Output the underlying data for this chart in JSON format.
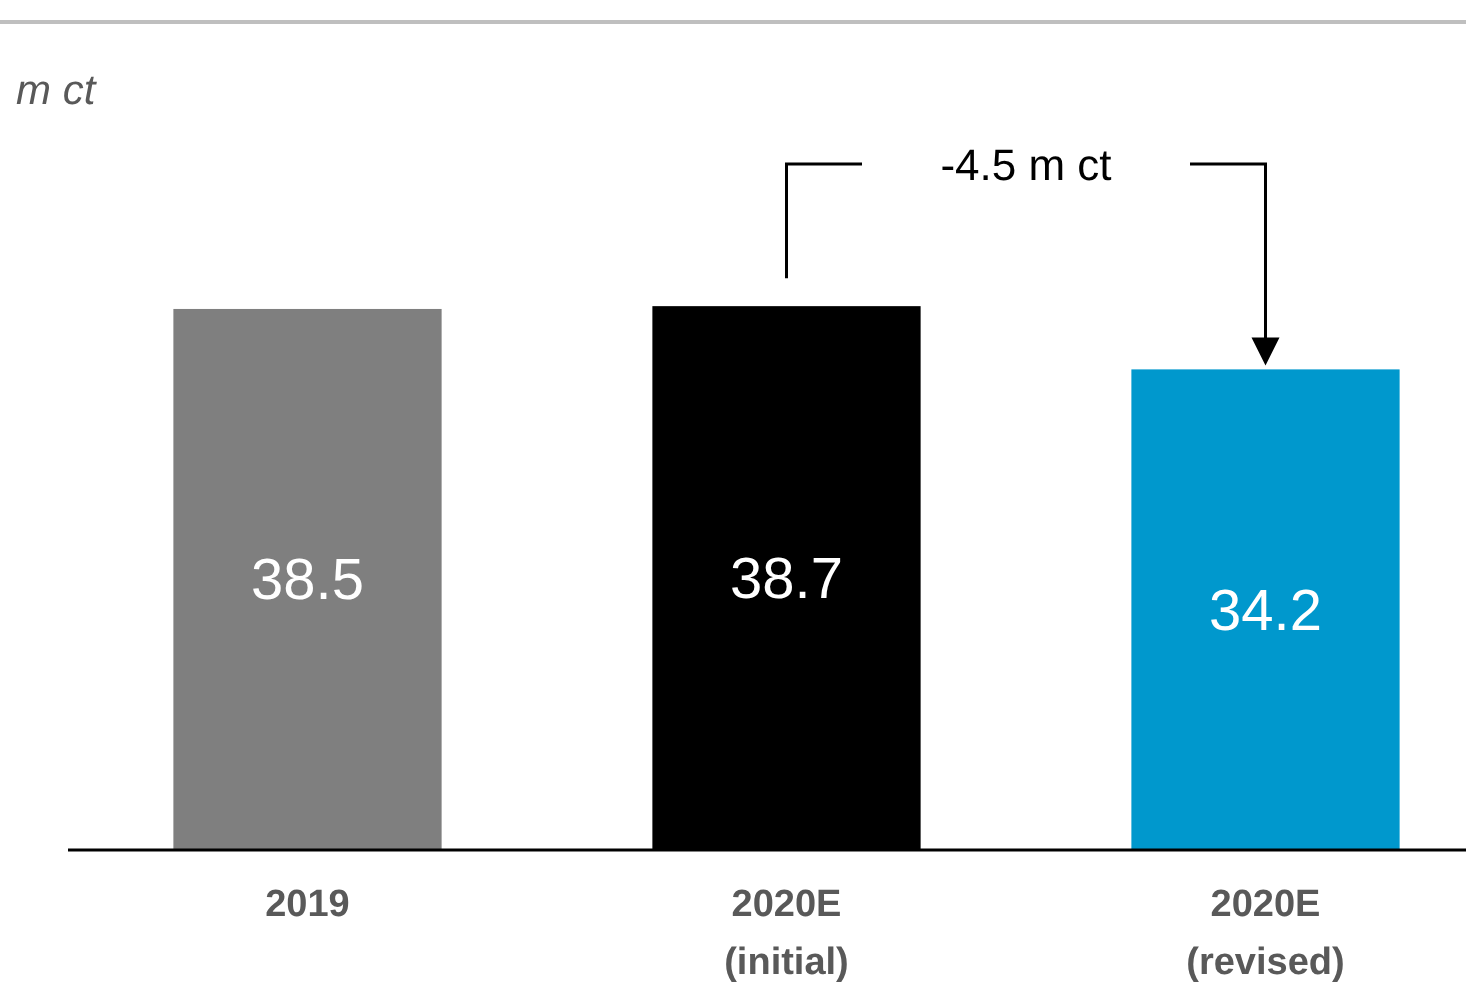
{
  "chart_data": {
    "type": "bar",
    "ylabel": "m ct",
    "categories": [
      "2019",
      "2020E (initial)",
      "2020E (revised)"
    ],
    "values": [
      38.5,
      38.7,
      34.2
    ],
    "colors": [
      "#7f7f7f",
      "#000000",
      "#0098cd"
    ],
    "data_labels": true,
    "annotations": [
      "-4.5 m ct"
    ]
  }
}
